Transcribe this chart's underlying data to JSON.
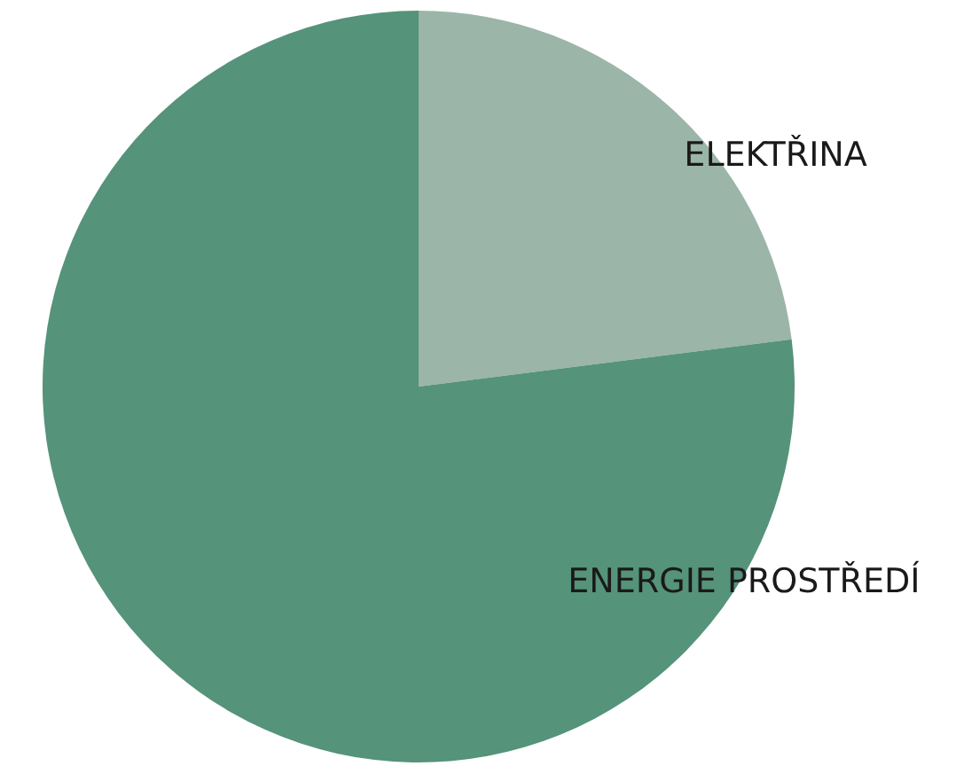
{
  "chart_data": {
    "type": "pie",
    "categories": [
      "ELEKTŘINA",
      "ENERGIE PROSTŘEDÍ"
    ],
    "values": [
      23,
      77
    ],
    "colors": [
      "#9bb5a8",
      "#55937a"
    ]
  }
}
